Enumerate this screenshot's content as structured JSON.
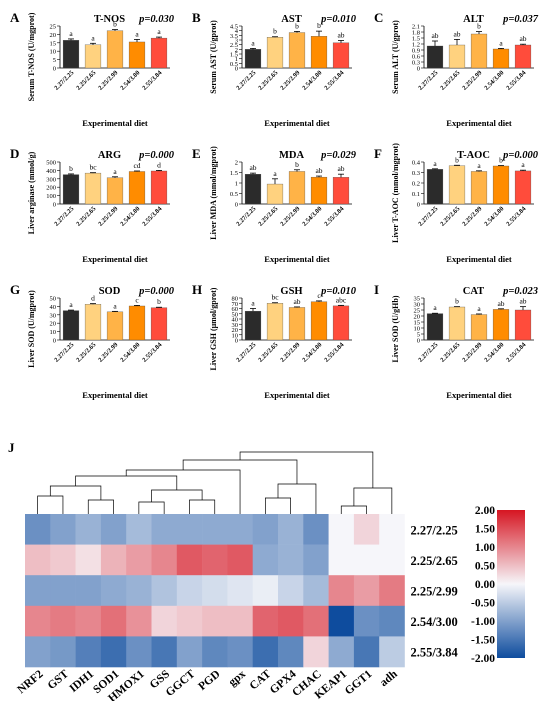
{
  "colors": [
    "#2b2b2b",
    "#ffd27f",
    "#ffb347",
    "#ff8c00",
    "#ff4c3b"
  ],
  "common": {
    "categories": [
      "2.27/2.25",
      "2.25/2.65",
      "2.25/2.99",
      "2.54/3.00",
      "2.55/3.84"
    ],
    "xlabel": "Experimental diet"
  },
  "chart_data": [
    {
      "type": "bar",
      "panel": "A",
      "title": "T-NOS",
      "pvalue": "p=0.030",
      "ylabel": "Serum T-NOS (U/mgprot)",
      "ylim": [
        0,
        25
      ],
      "yticks": [
        0,
        5,
        10,
        15,
        20,
        25
      ],
      "values": [
        16.5,
        13.8,
        22.2,
        15.5,
        17.8
      ],
      "errors": [
        0.8,
        0.9,
        0.7,
        1.5,
        0.6
      ],
      "letters": [
        "a",
        "a",
        "b",
        "a",
        "a"
      ]
    },
    {
      "type": "bar",
      "panel": "B",
      "title": "AST",
      "pvalue": "p=0.010",
      "ylabel": "Serum AST (U/gprot)",
      "ylim": [
        0,
        4.5
      ],
      "yticks": [
        0,
        0.5,
        1,
        1.5,
        2,
        2.5,
        3,
        3.5,
        4,
        4.5
      ],
      "values": [
        2.0,
        3.3,
        3.8,
        3.4,
        2.7
      ],
      "errors": [
        0.1,
        0.05,
        0.12,
        0.55,
        0.25
      ],
      "letters": [
        "a",
        "b",
        "b",
        "b",
        "ab"
      ]
    },
    {
      "type": "bar",
      "panel": "C",
      "title": "ALT",
      "pvalue": "p=0.037",
      "ylabel": "Serum ALT (U/gprot)",
      "ylim": [
        0,
        2.1
      ],
      "yticks": [
        0,
        0.3,
        0.6,
        0.9,
        1.2,
        1.5,
        1.8,
        2.1
      ],
      "values": [
        1.1,
        1.15,
        1.7,
        0.95,
        1.15
      ],
      "errors": [
        0.25,
        0.28,
        0.12,
        0.03,
        0.04
      ],
      "letters": [
        "ab",
        "ab",
        "b",
        "a",
        "ab"
      ]
    },
    {
      "type": "bar",
      "panel": "D",
      "title": "ARG",
      "pvalue": "p=0.000",
      "ylabel": "Liver arginase (mmol/g)",
      "ylim": [
        0,
        500
      ],
      "yticks": [
        0,
        100,
        200,
        300,
        400,
        500
      ],
      "values": [
        350,
        368,
        312,
        387,
        393
      ],
      "errors": [
        8,
        5,
        12,
        6,
        7
      ],
      "letters": [
        "b",
        "bc",
        "a",
        "cd",
        "d"
      ]
    },
    {
      "type": "bar",
      "panel": "E",
      "title": "MDA",
      "pvalue": "p=0.029",
      "ylabel": "Liver MDA (mmol/mgprot)",
      "ylim": [
        0,
        2
      ],
      "yticks": [
        0,
        0.5,
        1,
        1.5,
        2
      ],
      "values": [
        1.42,
        0.95,
        1.55,
        1.28,
        1.27
      ],
      "errors": [
        0.05,
        0.25,
        0.08,
        0.05,
        0.15
      ],
      "letters": [
        "ab",
        "a",
        "b",
        "ab",
        "ab"
      ]
    },
    {
      "type": "bar",
      "panel": "F",
      "title": "T-AOC",
      "pvalue": "p=0.000",
      "ylabel": "Liver T-AOC (mmol/mgprot)",
      "ylim": [
        0,
        0.4
      ],
      "yticks": [
        0,
        0.1,
        0.2,
        0.3,
        0.4
      ],
      "values": [
        0.33,
        0.365,
        0.31,
        0.362,
        0.315
      ],
      "errors": [
        0.005,
        0.004,
        0.006,
        0.004,
        0.007
      ],
      "letters": [
        "a",
        "b",
        "a",
        "b",
        "a"
      ]
    },
    {
      "type": "bar",
      "panel": "G",
      "title": "SOD",
      "pvalue": "p=0.000",
      "ylabel": "Liver SOD (U/mgprot)",
      "ylim": [
        0,
        50
      ],
      "yticks": [
        0,
        10,
        20,
        30,
        40,
        50
      ],
      "values": [
        35,
        42.5,
        33.5,
        40.5,
        38.5
      ],
      "errors": [
        0.6,
        0.8,
        0.6,
        0.7,
        0.5
      ],
      "letters": [
        "a",
        "d",
        "a",
        "c",
        "b"
      ]
    },
    {
      "type": "bar",
      "panel": "H",
      "title": "GSH",
      "pvalue": "p=0.010",
      "ylabel": "Liver GSH (μmol/gprot)",
      "ylim": [
        0,
        80
      ],
      "yticks": [
        0,
        10,
        20,
        30,
        40,
        50,
        60,
        70,
        80
      ],
      "values": [
        55,
        70,
        62,
        73,
        65
      ],
      "errors": [
        5,
        1,
        1,
        1.5,
        1
      ],
      "letters": [
        "a",
        "bc",
        "ab",
        "c",
        "abc"
      ]
    },
    {
      "type": "bar",
      "panel": "I",
      "title": "CAT",
      "pvalue": "p=0.023",
      "ylabel": "Liver SOD (U/gHb)",
      "ylim": [
        0,
        35
      ],
      "yticks": [
        0,
        5,
        10,
        15,
        20,
        25,
        30,
        35
      ],
      "values": [
        22,
        27.5,
        21.2,
        25.5,
        25
      ],
      "errors": [
        0.3,
        0.3,
        0.5,
        0.5,
        2.8
      ],
      "letters": [
        "a",
        "b",
        "a",
        "ab",
        "ab"
      ]
    },
    {
      "type": "heatmap",
      "panel": "J",
      "columns": [
        "NRF2",
        "GST",
        "IDH1",
        "SOD1",
        "HMOX1",
        "GSS",
        "GGCT",
        "PGD",
        "gpx",
        "CAT",
        "GPX4",
        "CHAC",
        "KEAP1",
        "GGT1",
        "adh"
      ],
      "rows": [
        "2.27/2.25",
        "2.25/2.65",
        "2.25/2.99",
        "2.54/3.00",
        "2.55/3.84"
      ],
      "values": [
        [
          -1.2,
          -1.0,
          -0.8,
          -1.0,
          -0.7,
          -0.9,
          -0.9,
          -0.9,
          -0.9,
          -1.0,
          -0.8,
          -1.2,
          0.0,
          0.3,
          0.0
        ],
        [
          0.5,
          0.4,
          0.2,
          0.6,
          0.8,
          1.0,
          1.4,
          1.3,
          1.4,
          -0.9,
          -0.8,
          -1.0,
          0.0,
          0.0,
          0.0
        ],
        [
          -1.0,
          -1.0,
          -1.0,
          -0.9,
          -0.8,
          -0.6,
          -0.4,
          -0.3,
          -0.2,
          -0.1,
          -0.4,
          -0.7,
          1.0,
          0.8,
          1.1
        ],
        [
          1.0,
          1.1,
          1.0,
          1.2,
          0.9,
          0.3,
          0.4,
          0.5,
          0.5,
          1.3,
          1.4,
          1.2,
          -2.0,
          -1.2,
          -1.3
        ],
        [
          -1.0,
          -1.1,
          -1.4,
          -1.6,
          -1.2,
          -1.5,
          -1.0,
          -1.3,
          -1.2,
          -1.6,
          -1.3,
          0.3,
          -0.9,
          -1.5,
          -0.5
        ]
      ],
      "colorbar": {
        "min": -2,
        "max": 2,
        "ticks": [
          "2.00",
          "1.50",
          "1.00",
          "0.50",
          "0.00",
          "-0.50",
          "-1.00",
          "-1.50",
          "-2.00"
        ]
      }
    }
  ]
}
